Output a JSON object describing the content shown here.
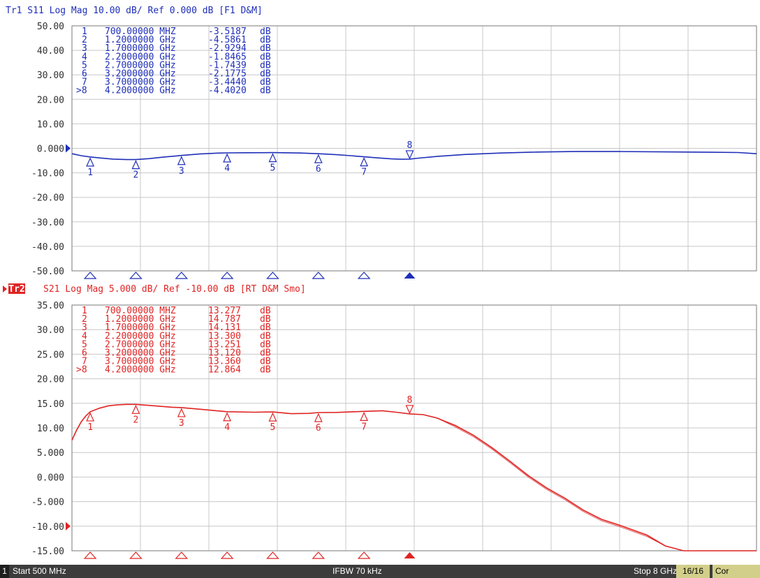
{
  "colors": {
    "trace1": "#1f2fb8",
    "trace2": "#e02424",
    "grid": "#c8c8c8",
    "frame": "#7a7a7a",
    "axis_text": "#303030",
    "statusbar_bg": "#3c3c3c",
    "statusbar_highlight": "#d2cf8a"
  },
  "chart_data": [
    {
      "type": "line",
      "title": "Tr1 S11 Log Mag 10.00 dB/ Ref 0.000 dB [F1 D&M]",
      "trace_id": "Tr1",
      "active": false,
      "xlim_mhz": [
        500,
        8000
      ],
      "ylim": [
        -50,
        50
      ],
      "ref_level": 0,
      "ref_label": "0.000",
      "y_ticks": [
        "50.00",
        "40.00",
        "30.00",
        "20.00",
        "10.00",
        "0.000",
        "-10.00",
        "-20.00",
        "-30.00",
        "-40.00",
        "-50.00"
      ],
      "grid": true,
      "x_gridlines": 10,
      "series": [
        {
          "x_mhz": [
            500,
            600,
            700,
            800,
            950,
            1100,
            1200,
            1350,
            1500,
            1700,
            1900,
            2100,
            2200,
            2400,
            2700,
            3000,
            3200,
            3400,
            3550,
            3700,
            3850,
            4000,
            4100,
            4200,
            4300,
            4500,
            4800,
            5200,
            5600,
            6000,
            6500,
            7000,
            7500,
            7800,
            8000
          ],
          "values": [
            -2.2,
            -3.0,
            -3.5,
            -3.9,
            -4.4,
            -4.6,
            -4.6,
            -4.2,
            -3.6,
            -2.9,
            -2.3,
            -1.95,
            -1.85,
            -1.8,
            -1.74,
            -1.9,
            -2.18,
            -2.6,
            -3.0,
            -3.44,
            -3.9,
            -4.3,
            -4.45,
            -4.4,
            -4.0,
            -3.3,
            -2.5,
            -1.9,
            -1.5,
            -1.3,
            -1.3,
            -1.45,
            -1.6,
            -1.7,
            -2.2
          ]
        }
      ],
      "markers": [
        {
          "n": "1",
          "freq_mhz": 700,
          "freq": "700.00000 MHZ",
          "value": -3.5187,
          "value_text": "-3.5187",
          "unit": "dB",
          "active": false
        },
        {
          "n": "2",
          "freq_mhz": 1200,
          "freq": "1.2000000 GHz",
          "value": -4.5861,
          "value_text": "-4.5861",
          "unit": "dB",
          "active": false
        },
        {
          "n": "3",
          "freq_mhz": 1700,
          "freq": "1.7000000 GHz",
          "value": -2.9294,
          "value_text": "-2.9294",
          "unit": "dB",
          "active": false
        },
        {
          "n": "4",
          "freq_mhz": 2200,
          "freq": "2.2000000 GHz",
          "value": -1.8465,
          "value_text": "-1.8465",
          "unit": "dB",
          "active": false
        },
        {
          "n": "5",
          "freq_mhz": 2700,
          "freq": "2.7000000 GHz",
          "value": -1.7439,
          "value_text": "-1.7439",
          "unit": "dB",
          "active": false
        },
        {
          "n": "6",
          "freq_mhz": 3200,
          "freq": "3.2000000 GHz",
          "value": -2.1775,
          "value_text": "-2.1775",
          "unit": "dB",
          "active": false
        },
        {
          "n": "7",
          "freq_mhz": 3700,
          "freq": "3.7000000 GHz",
          "value": -3.444,
          "value_text": "-3.4440",
          "unit": "dB",
          "active": false
        },
        {
          "n": "8",
          "freq_mhz": 4200,
          "freq": "4.2000000 GHz",
          "value": -4.402,
          "value_text": "-4.4020",
          "unit": "dB",
          "active": true
        }
      ]
    },
    {
      "type": "line",
      "title": "S21 Log Mag 5.000 dB/ Ref -10.00 dB [RT D&M Smo]",
      "trace_id": "Tr2",
      "active": true,
      "xlim_mhz": [
        500,
        8000
      ],
      "ylim": [
        -15,
        35
      ],
      "ref_level": -10,
      "ref_label": "-10.00",
      "y_ticks": [
        "35.00",
        "30.00",
        "25.00",
        "20.00",
        "15.00",
        "10.00",
        "5.000",
        "0.000",
        "-5.000",
        "-10.00",
        "-15.00"
      ],
      "grid": true,
      "x_gridlines": 10,
      "series": [
        {
          "x_mhz": [
            500,
            550,
            600,
            650,
            700,
            800,
            900,
            1000,
            1100,
            1200,
            1400,
            1600,
            1700,
            1900,
            2200,
            2500,
            2700,
            2900,
            3100,
            3200,
            3400,
            3600,
            3700,
            3900,
            4050,
            4200,
            4350,
            4500,
            4700,
            4900,
            5100,
            5300,
            5500,
            5700,
            5900,
            6100,
            6300,
            6500,
            6800,
            7000,
            7200,
            7400,
            7600,
            7800,
            8000
          ],
          "values": [
            7.5,
            9.5,
            11.2,
            12.4,
            13.28,
            14.0,
            14.5,
            14.7,
            14.78,
            14.79,
            14.5,
            14.2,
            14.13,
            13.8,
            13.3,
            13.2,
            13.25,
            12.9,
            12.95,
            13.12,
            13.15,
            13.3,
            13.36,
            13.5,
            13.2,
            12.86,
            12.7,
            12.0,
            10.5,
            8.5,
            6.0,
            3.2,
            0.3,
            -2.2,
            -4.3,
            -6.7,
            -8.6,
            -9.8,
            -11.8,
            -14.0,
            -15.0,
            -15.0,
            -15.0,
            -15.0,
            -15.0
          ]
        }
      ],
      "markers": [
        {
          "n": "1",
          "freq_mhz": 700,
          "freq": "700.00000 MHZ",
          "value": 13.277,
          "value_text": "13.277",
          "unit": "dB",
          "active": false
        },
        {
          "n": "2",
          "freq_mhz": 1200,
          "freq": "1.2000000 GHz",
          "value": 14.787,
          "value_text": "14.787",
          "unit": "dB",
          "active": false
        },
        {
          "n": "3",
          "freq_mhz": 1700,
          "freq": "1.7000000 GHz",
          "value": 14.131,
          "value_text": "14.131",
          "unit": "dB",
          "active": false
        },
        {
          "n": "4",
          "freq_mhz": 2200,
          "freq": "2.2000000 GHz",
          "value": 13.3,
          "value_text": "13.300",
          "unit": "dB",
          "active": false
        },
        {
          "n": "5",
          "freq_mhz": 2700,
          "freq": "2.7000000 GHz",
          "value": 13.251,
          "value_text": "13.251",
          "unit": "dB",
          "active": false
        },
        {
          "n": "6",
          "freq_mhz": 3200,
          "freq": "3.2000000 GHz",
          "value": 13.12,
          "value_text": "13.120",
          "unit": "dB",
          "active": false
        },
        {
          "n": "7",
          "freq_mhz": 3700,
          "freq": "3.7000000 GHz",
          "value": 13.36,
          "value_text": "13.360",
          "unit": "dB",
          "active": false
        },
        {
          "n": "8",
          "freq_mhz": 4200,
          "freq": "4.2000000 GHz",
          "value": 12.864,
          "value_text": "12.864",
          "unit": "dB",
          "active": true
        }
      ]
    }
  ],
  "statusbar": {
    "channel": "1",
    "start": "Start 500 MHz",
    "ifbw": "IFBW 70 kHz",
    "stop": "Stop 8 GHz",
    "count": "16/16",
    "cor": "Cor"
  }
}
